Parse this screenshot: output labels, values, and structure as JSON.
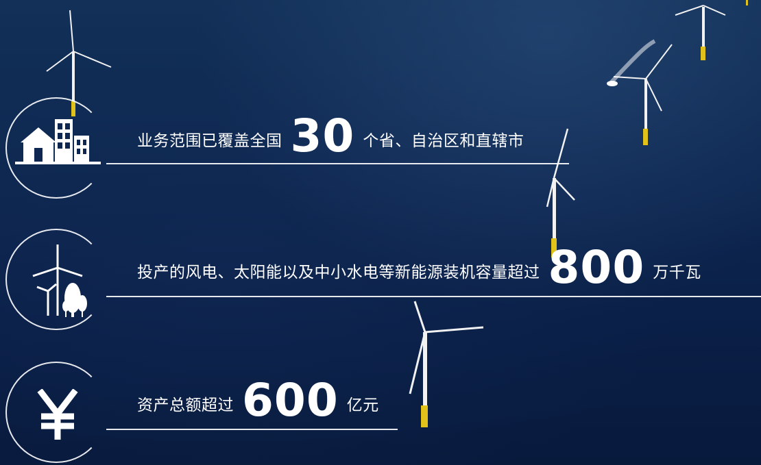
{
  "stats": [
    {
      "prefix": "业务范围已覆盖全国",
      "number": "30",
      "suffix": "个省、自治区和直辖市",
      "icon": "buildings-icon"
    },
    {
      "prefix": "投产的风电、太阳能以及中小水电等新能源装机容量超过",
      "number": "800",
      "suffix": "万千瓦",
      "icon": "wind-turbine-icon"
    },
    {
      "prefix": "资产总额超过",
      "number": "600",
      "suffix": "亿元",
      "icon": "yuan-icon"
    }
  ],
  "colors": {
    "sea_dark": "#0a1f47",
    "sea_light": "#123058",
    "text": "#ffffff"
  }
}
